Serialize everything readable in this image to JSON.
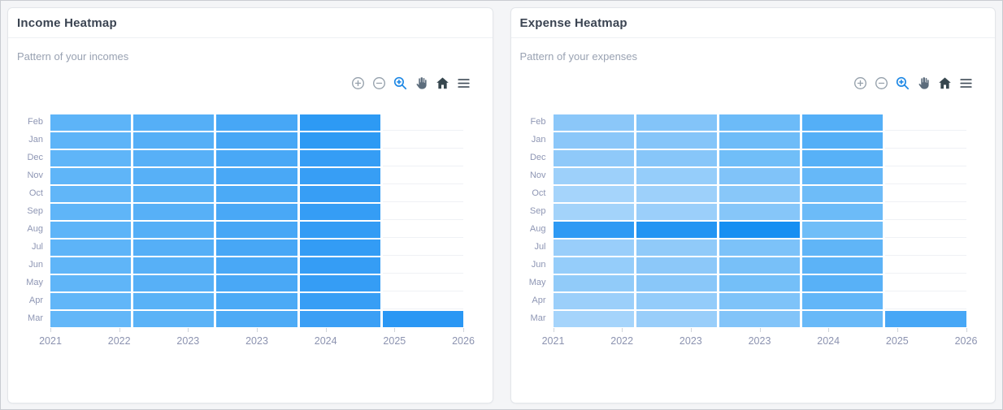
{
  "page": {
    "background_color": "#f4f5f7",
    "card_background": "#ffffff"
  },
  "toolbar": {
    "icons": [
      "zoom-in",
      "zoom-out",
      "selection-zoom",
      "pan",
      "reset-home",
      "menu"
    ],
    "active_icon": "selection-zoom",
    "active_color": "#1e88e5",
    "inactive_color": "#95a0ab",
    "dark_icon_color": "#3e4a56"
  },
  "panels": [
    {
      "title": "Income Heatmap",
      "subtitle": "Pattern of your incomes",
      "chart_data": {
        "type": "heatmap",
        "title": "Income Heatmap",
        "subtitle": "Pattern of your incomes",
        "x_tick_labels": [
          "2021",
          "2022",
          "2023",
          "2023",
          "2024",
          "2025",
          "2026"
        ],
        "n_columns": 5,
        "legend": "none",
        "grid": "horizontal-faint",
        "intensity_note": "color darkens left-to-right; darkest cell is Mar in final column",
        "rows": [
          {
            "label": "Feb",
            "colors": [
              "#5db4f8",
              "#55aff7",
              "#47a7f6",
              "#2d9af4"
            ]
          },
          {
            "label": "Jan",
            "colors": [
              "#5db4f8",
              "#55aff7",
              "#47a7f6",
              "#2d9af4"
            ]
          },
          {
            "label": "Dec",
            "colors": [
              "#5fb5f8",
              "#57b0f7",
              "#49a8f6",
              "#359df5"
            ]
          },
          {
            "label": "Nov",
            "colors": [
              "#5fb5f8",
              "#57b0f7",
              "#49a8f6",
              "#379ef5"
            ]
          },
          {
            "label": "Oct",
            "colors": [
              "#61b6f8",
              "#59b2f7",
              "#4baaf6",
              "#379ef5"
            ]
          },
          {
            "label": "Sep",
            "colors": [
              "#5fb5f8",
              "#57b0f7",
              "#49a8f6",
              "#359df5"
            ]
          },
          {
            "label": "Aug",
            "colors": [
              "#5db4f8",
              "#55aff7",
              "#47a7f6",
              "#339cf5"
            ]
          },
          {
            "label": "Jul",
            "colors": [
              "#5db4f8",
              "#55aff7",
              "#47a7f6",
              "#339cf5"
            ]
          },
          {
            "label": "Jun",
            "colors": [
              "#5fb5f8",
              "#57b0f7",
              "#49a8f6",
              "#359df5"
            ]
          },
          {
            "label": "May",
            "colors": [
              "#5fb5f8",
              "#57b0f7",
              "#49a8f6",
              "#359df5"
            ]
          },
          {
            "label": "Apr",
            "colors": [
              "#61b6f8",
              "#59b2f7",
              "#4baaf6",
              "#379ef5"
            ]
          },
          {
            "label": "Mar",
            "colors": [
              "#63b7f8",
              "#5bb3f7",
              "#4dabf6",
              "#3b9ff5",
              "#2a97f4"
            ]
          }
        ]
      }
    },
    {
      "title": "Expense Heatmap",
      "subtitle": "Pattern of your expenses",
      "chart_data": {
        "type": "heatmap",
        "title": "Expense Heatmap",
        "subtitle": "Pattern of your expenses",
        "x_tick_labels": [
          "2021",
          "2022",
          "2023",
          "2023",
          "2024",
          "2025",
          "2026"
        ],
        "n_columns": 5,
        "legend": "none",
        "grid": "horizontal-faint",
        "intensity_note": "mostly light cells darkening to the right; Aug row columns 1-3 are the darkest cells",
        "rows": [
          {
            "label": "Feb",
            "colors": [
              "#8bc7f9",
              "#83c4f9",
              "#6cbbf8",
              "#54aff7"
            ]
          },
          {
            "label": "Jan",
            "colors": [
              "#8bc7f9",
              "#85c5f9",
              "#6ebcf8",
              "#54aff7"
            ]
          },
          {
            "label": "Dec",
            "colors": [
              "#8fc9f9",
              "#87c6f9",
              "#70bef8",
              "#57b1f7"
            ]
          },
          {
            "label": "Nov",
            "colors": [
              "#9dd0fa",
              "#95cdfa",
              "#80c3f9",
              "#66b8f8"
            ]
          },
          {
            "label": "Oct",
            "colors": [
              "#a5d4fb",
              "#9dd0fa",
              "#88c7f9",
              "#6ebcf8"
            ]
          },
          {
            "label": "Sep",
            "colors": [
              "#a3d3fa",
              "#9bcffa",
              "#86c6f9",
              "#6cbbf8"
            ]
          },
          {
            "label": "Aug",
            "colors": [
              "#2e9af4",
              "#2395f3",
              "#168ff2",
              "#70bef8"
            ]
          },
          {
            "label": "Jul",
            "colors": [
              "#99cefa",
              "#90caf9",
              "#7cc2f9",
              "#60b5f7"
            ]
          },
          {
            "label": "Jun",
            "colors": [
              "#95cdfa",
              "#8cc8f9",
              "#78c0f8",
              "#5cb3f7"
            ]
          },
          {
            "label": "May",
            "colors": [
              "#91cbf9",
              "#89c7f9",
              "#74bff8",
              "#58b1f7"
            ]
          },
          {
            "label": "Apr",
            "colors": [
              "#9bcffa",
              "#93ccfa",
              "#7ec3f9",
              "#62b6f8"
            ]
          },
          {
            "label": "Mar",
            "colors": [
              "#a5d4fb",
              "#99cefa",
              "#82c4f9",
              "#68b9f8",
              "#47a7f6"
            ]
          }
        ]
      }
    }
  ]
}
